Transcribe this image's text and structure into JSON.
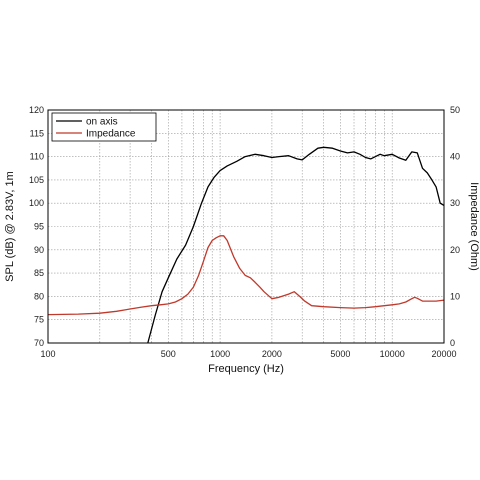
{
  "chart_data": {
    "type": "line",
    "xscale": "log",
    "xlabel": "Frequency (Hz)",
    "ylabel_left": "SPL (dB) @ 2.83V, 1m",
    "ylabel_right": "Impedance (Ohm)",
    "xlim": [
      100,
      20000
    ],
    "ylim_left": [
      70,
      120
    ],
    "ylim_right": [
      0,
      50
    ],
    "x_ticks": [
      100,
      500,
      1000,
      2000,
      5000,
      10000,
      20000
    ],
    "x_tick_labels": [
      "100",
      "500",
      "1000",
      "2000",
      "5000",
      "10000",
      "20000"
    ],
    "y_ticks_left": [
      70,
      75,
      80,
      85,
      90,
      95,
      100,
      105,
      110,
      115,
      120
    ],
    "y_tick_labels_left": [
      "70",
      "75",
      "80",
      "85",
      "90",
      "95",
      "100",
      "105",
      "110",
      "115",
      "120"
    ],
    "y_ticks_right": [
      0,
      10,
      20,
      30,
      40,
      50
    ],
    "y_tick_labels_right": [
      "0",
      "10",
      "20",
      "30",
      "40",
      "50"
    ],
    "grid": true,
    "legend_position": "top-left",
    "series": [
      {
        "name": "on axis",
        "color": "#000000",
        "axis": "left",
        "x": [
          380,
          420,
          460,
          500,
          560,
          630,
          700,
          780,
          850,
          920,
          1000,
          1100,
          1250,
          1400,
          1600,
          1800,
          2000,
          2200,
          2500,
          2800,
          3000,
          3300,
          3700,
          4000,
          4500,
          5000,
          5500,
          6000,
          6500,
          7000,
          7500,
          8000,
          8500,
          9000,
          10000,
          11000,
          12000,
          13000,
          14000,
          15000,
          16000,
          17000,
          18000,
          19000,
          20000
        ],
        "y": [
          70,
          76,
          81,
          84,
          88,
          91,
          95,
          100,
          103.5,
          105.5,
          107,
          108,
          109,
          110,
          110.5,
          110.2,
          109.8,
          110,
          110.2,
          109.5,
          109.3,
          110.5,
          111.8,
          112,
          111.8,
          111.2,
          110.8,
          111,
          110.5,
          109.8,
          109.5,
          110,
          110.5,
          110.2,
          110.5,
          109.7,
          109.2,
          111,
          110.8,
          107.5,
          106.5,
          105,
          103.5,
          100,
          99.5
        ]
      },
      {
        "name": "Impedance",
        "color": "#c0392b",
        "axis": "right",
        "x": [
          100,
          150,
          200,
          250,
          300,
          350,
          400,
          450,
          500,
          550,
          600,
          650,
          700,
          750,
          800,
          850,
          900,
          950,
          1000,
          1050,
          1100,
          1200,
          1300,
          1400,
          1500,
          1600,
          1700,
          1800,
          2000,
          2200,
          2500,
          2700,
          2900,
          3100,
          3400,
          4000,
          5000,
          6000,
          7000,
          8000,
          9000,
          10000,
          11000,
          12000,
          13000,
          13500,
          14000,
          15000,
          16000,
          18000,
          20000
        ],
        "y": [
          6.1,
          6.2,
          6.4,
          6.8,
          7.3,
          7.7,
          8.0,
          8.2,
          8.4,
          8.8,
          9.5,
          10.5,
          12,
          14.5,
          17.5,
          20.5,
          22,
          22.6,
          23,
          23,
          22,
          18.5,
          16,
          14.5,
          14,
          13,
          12,
          11,
          9.5,
          9.8,
          10.5,
          11,
          10,
          9,
          8,
          7.8,
          7.6,
          7.5,
          7.6,
          7.8,
          8,
          8.2,
          8.4,
          8.8,
          9.5,
          9.8,
          9.6,
          9,
          9,
          9,
          9.2
        ]
      }
    ]
  }
}
